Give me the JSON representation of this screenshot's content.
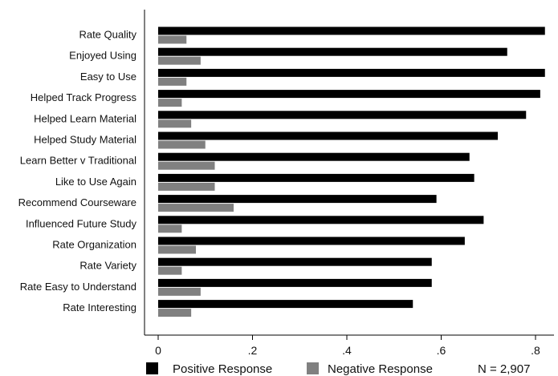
{
  "chart_data": {
    "type": "bar",
    "orientation": "horizontal",
    "categories": [
      "Rate Quality",
      "Enjoyed Using",
      "Easy to Use",
      "Helped Track Progress",
      "Helped Learn Material",
      "Helped Study Material",
      "Learn Better v Traditional",
      "Like to Use Again",
      "Recommend Courseware",
      "Influenced Future Study",
      "Rate Organization",
      "Rate Variety",
      "Rate Easy to Understand",
      "Rate Interesting"
    ],
    "series": [
      {
        "name": "Positive Response",
        "color": "#000000",
        "values": [
          0.82,
          0.74,
          0.82,
          0.81,
          0.78,
          0.72,
          0.66,
          0.67,
          0.59,
          0.69,
          0.65,
          0.58,
          0.58,
          0.54
        ]
      },
      {
        "name": "Negative Response",
        "color": "#808080",
        "values": [
          0.06,
          0.09,
          0.06,
          0.05,
          0.07,
          0.1,
          0.12,
          0.12,
          0.16,
          0.05,
          0.08,
          0.05,
          0.09,
          0.07
        ]
      }
    ],
    "xlim": [
      0,
      0.82
    ],
    "xticks": [
      {
        "value": 0,
        "label": "0"
      },
      {
        "value": 0.2,
        "label": ".2"
      },
      {
        "value": 0.4,
        "label": ".4"
      },
      {
        "value": 0.6,
        "label": ".6"
      },
      {
        "value": 0.8,
        "label": ".8"
      }
    ],
    "title": "",
    "xlabel": "",
    "ylabel": "",
    "grid": false,
    "legend_position": "bottom",
    "note": "N = 2,907"
  }
}
